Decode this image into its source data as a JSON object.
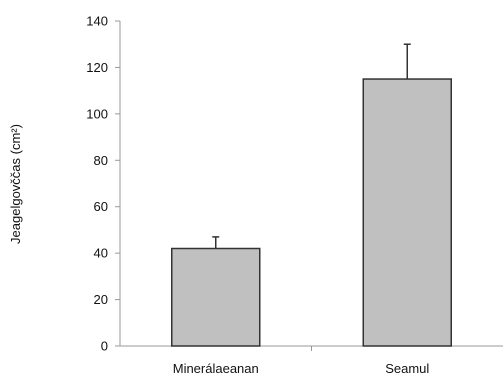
{
  "chart_data": {
    "type": "bar",
    "categories": [
      "Minerálaeanan",
      "Seamul"
    ],
    "values": [
      42,
      115
    ],
    "errors": [
      5,
      15
    ],
    "title": "",
    "xlabel": "",
    "ylabel": "Jeagelgovččas (cm²)",
    "ylim": [
      0,
      140
    ],
    "yticks": [
      0,
      20,
      40,
      60,
      80,
      100,
      120,
      140
    ],
    "grid": false,
    "bar_color": "#c0c0c0",
    "bar_edge_color": "#333333",
    "axis_color": "#999999"
  }
}
